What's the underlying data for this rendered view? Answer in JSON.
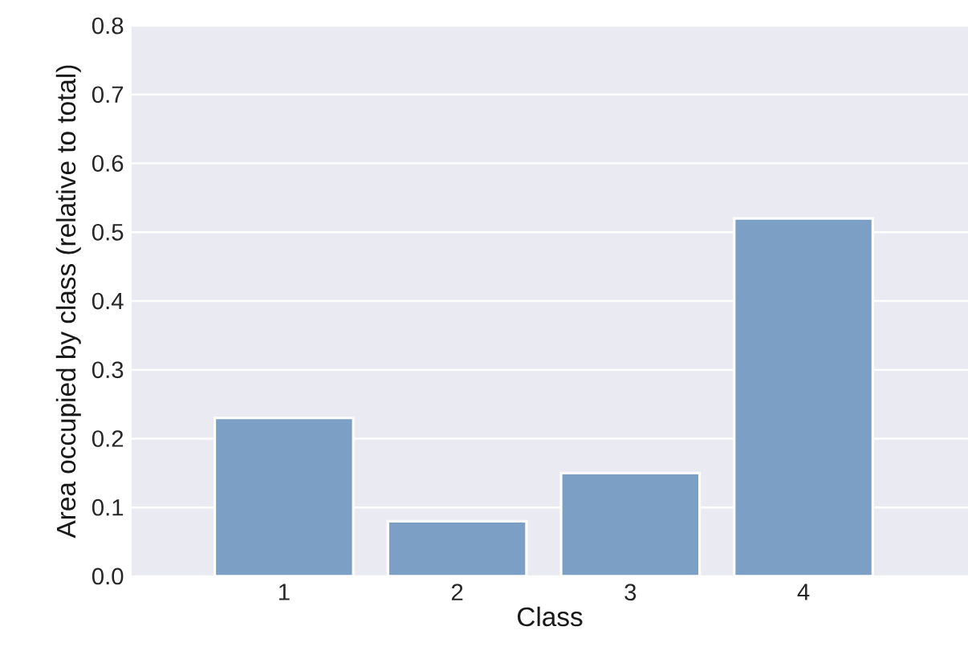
{
  "chart_data": {
    "type": "bar",
    "xlabel": "Class",
    "ylabel": "Area occupied by class (relative to total)",
    "categories": [
      "1",
      "2",
      "3",
      "4"
    ],
    "values": [
      0.23,
      0.08,
      0.15,
      0.52
    ],
    "color": "#7b9fc5",
    "ylim": [
      0,
      0.8
    ],
    "yticks": [
      {
        "value": 0,
        "label": "0.0"
      },
      0.1,
      0.2,
      0.3,
      0.4,
      0.5,
      0.6,
      0.7,
      0.8
    ],
    "grid": "y"
  }
}
